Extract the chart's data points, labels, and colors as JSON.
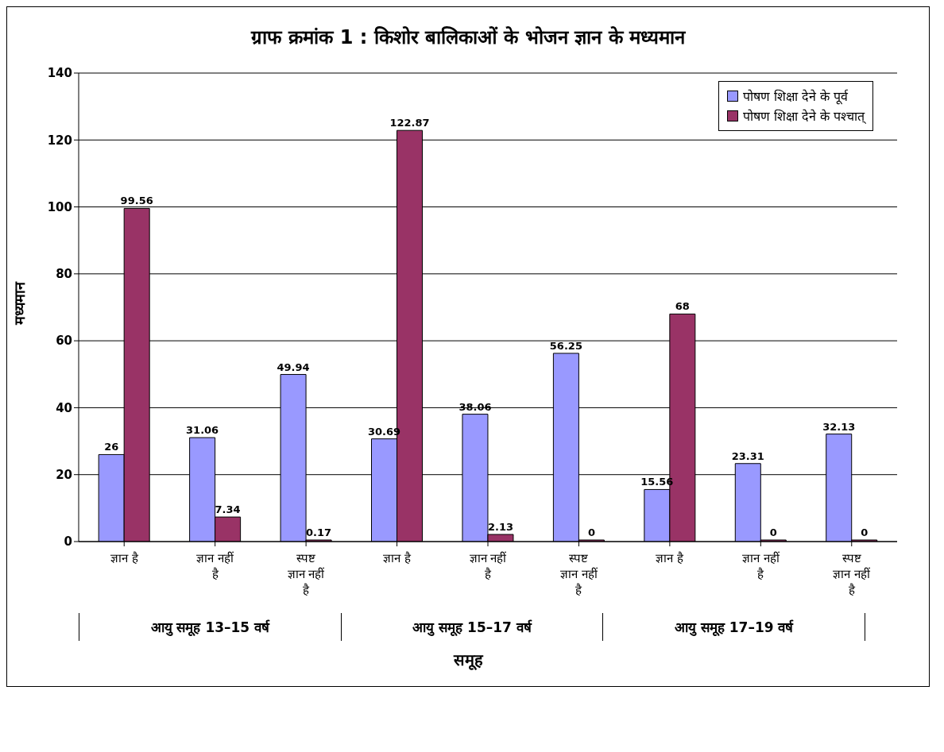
{
  "chart_data": {
    "type": "bar",
    "title": "ग्राफ क्रमांक 1 : किशोर बालिकाओं के भोजन ज्ञान के मध्यमान",
    "xlabel": "समूह",
    "ylabel": "मध्यमान",
    "categories": [
      "ज्ञान है",
      "ज्ञान नहीं है",
      "स्पष्ट ज्ञान नहीं है",
      "ज्ञान है",
      "ज्ञान नहीं है",
      "स्पष्ट ज्ञान नहीं है",
      "ज्ञान है",
      "ज्ञान नहीं है",
      "स्पष्ट ज्ञान नहीं है"
    ],
    "series": [
      {
        "name": "पोषण शिक्षा देने के पूर्व",
        "color": "#9999ff",
        "values": [
          26,
          31.06,
          49.94,
          30.69,
          38.06,
          56.25,
          15.56,
          23.31,
          32.13
        ]
      },
      {
        "name": "पोषण शिक्षा देने के पश्चात्",
        "color": "#993366",
        "values": [
          99.56,
          7.34,
          0.17,
          122.87,
          2.13,
          0,
          68,
          0,
          0
        ]
      }
    ],
    "annotations": [
      "आयु समूह 13–15 वर्ष",
      "आयु समूह 15–17 वर्ष",
      "आयु समूह 17–19 वर्ष"
    ],
    "ylim": [
      0,
      140
    ],
    "yticks": [
      0,
      20,
      40,
      60,
      80,
      100,
      120,
      140
    ],
    "grid": "y",
    "legend": "top right",
    "data_labels": true
  }
}
